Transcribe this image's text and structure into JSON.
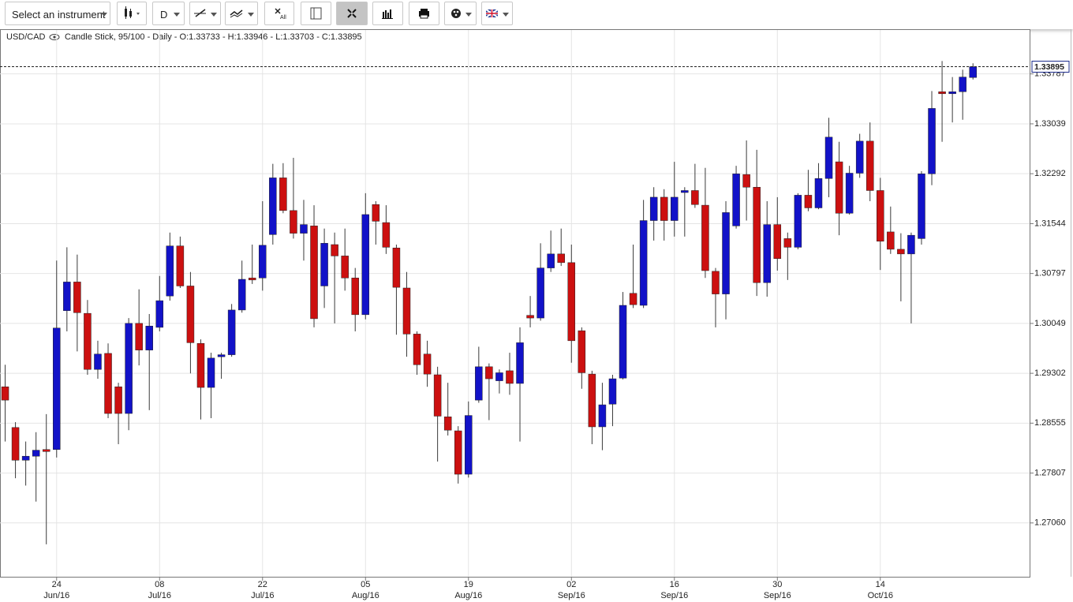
{
  "toolbar": {
    "instrument": "Select an instrument",
    "period": "D",
    "clear_label": "All"
  },
  "chart_data": {
    "type": "candlestick",
    "title": "USD/CAD",
    "subtitle": "Candle Stick, 95/100 - Daily - O:1.33733 - H:1.33946 - L:1.33703 - C:1.33895",
    "categories": [
      null,
      null,
      null,
      null,
      null,
      "24 Jun/16",
      null,
      null,
      null,
      null,
      null,
      null,
      null,
      null,
      null,
      "08 Jul/16",
      null,
      null,
      null,
      null,
      null,
      null,
      null,
      null,
      null,
      "22 Jul/16",
      null,
      null,
      null,
      null,
      null,
      null,
      null,
      null,
      null,
      "05 Aug/16",
      null,
      null,
      null,
      null,
      null,
      null,
      null,
      null,
      null,
      "19 Aug/16",
      null,
      null,
      null,
      null,
      null,
      null,
      null,
      null,
      null,
      "02 Sep/16",
      null,
      null,
      null,
      null,
      null,
      null,
      null,
      null,
      null,
      "16 Sep/16",
      null,
      null,
      null,
      null,
      null,
      null,
      null,
      null,
      null,
      "30 Sep/16",
      null,
      null,
      null,
      null,
      null,
      null,
      null,
      null,
      null,
      "14 Oct/16",
      null,
      null,
      null,
      null,
      null,
      null,
      null,
      null,
      null
    ],
    "open": [
      1.291,
      1.2849,
      1.28,
      1.2806,
      1.2816,
      1.2816,
      1.3024,
      1.3067,
      1.302,
      1.2936,
      1.296,
      1.291,
      1.287,
      1.3005,
      1.2965,
      1.2999,
      1.3046,
      1.3121,
      1.3061,
      1.2975,
      1.2909,
      1.2955,
      1.2958,
      1.3025,
      1.3073,
      1.3073,
      1.3138,
      1.3223,
      1.3174,
      1.314,
      1.3151,
      1.3061,
      1.3123,
      1.3106,
      1.3073,
      1.3018,
      1.3183,
      1.3156,
      1.3118,
      1.3058,
      1.2989,
      1.2959,
      1.2928,
      1.2865,
      1.2844,
      1.2779,
      1.289,
      1.294,
      1.2919,
      1.2934,
      1.2915,
      1.3017,
      1.3013,
      1.3088,
      1.3109,
      1.3096,
      1.2994,
      1.2929,
      1.285,
      1.2884,
      1.2923,
      1.305,
      1.3032,
      1.3159,
      1.3194,
      1.3159,
      1.3201,
      1.3204,
      1.3182,
      1.3083,
      1.3049,
      1.3151,
      1.3228,
      1.3209,
      1.3066,
      1.3153,
      1.3132,
      1.3119,
      1.3197,
      1.3178,
      1.3222,
      1.3247,
      1.317,
      1.323,
      1.3278,
      1.3204,
      1.3142,
      1.3116,
      1.3109,
      1.3132,
      1.3229,
      1.3352,
      1.3349,
      1.3352,
      1.33733
    ],
    "high": [
      1.2943,
      1.2857,
      1.2828,
      1.2842,
      1.2869,
      1.3099,
      1.3119,
      1.3108,
      1.304,
      1.2979,
      1.2975,
      1.2916,
      1.3013,
      1.3056,
      1.3019,
      1.3076,
      1.3141,
      1.3135,
      1.3082,
      1.2981,
      1.2961,
      1.2961,
      1.3034,
      1.3099,
      1.3123,
      1.3188,
      1.3244,
      1.3245,
      1.3253,
      1.319,
      1.3182,
      1.3147,
      1.3141,
      1.3147,
      1.3088,
      1.32,
      1.3188,
      1.3182,
      1.3123,
      1.3082,
      1.2993,
      1.2979,
      1.294,
      1.2916,
      1.2851,
      1.2888,
      1.297,
      1.2945,
      1.2936,
      1.2961,
      1.2999,
      1.3046,
      1.3125,
      1.3144,
      1.3147,
      1.3123,
      1.2999,
      1.2934,
      1.2916,
      1.2928,
      1.3052,
      1.3123,
      1.319,
      1.3209,
      1.3206,
      1.3247,
      1.3209,
      1.3244,
      1.3238,
      1.3088,
      1.3188,
      1.3241,
      1.3279,
      1.3265,
      1.3188,
      1.3194,
      1.3141,
      1.32,
      1.3235,
      1.3245,
      1.3313,
      1.3277,
      1.3241,
      1.3289,
      1.3306,
      1.3223,
      1.318,
      1.314,
      1.3141,
      1.3233,
      1.3353,
      1.3398,
      1.3374,
      1.3385,
      1.33946
    ],
    "low": [
      1.2828,
      1.2773,
      1.2762,
      1.2738,
      1.2674,
      1.2804,
      1.2993,
      1.2963,
      1.2928,
      1.2922,
      1.2863,
      1.2824,
      1.2845,
      1.2942,
      1.2875,
      1.2993,
      1.3039,
      1.3058,
      1.293,
      1.2861,
      1.2863,
      1.2922,
      1.2955,
      1.3021,
      1.3064,
      1.3054,
      1.3123,
      1.317,
      1.3132,
      1.3099,
      1.2999,
      1.3028,
      1.3005,
      1.3054,
      1.2993,
      1.3011,
      1.3123,
      1.3109,
      1.2988,
      1.2955,
      1.2928,
      1.291,
      1.2798,
      1.2837,
      1.2765,
      1.2774,
      1.2886,
      1.286,
      1.29,
      1.2898,
      1.2828,
      1.2999,
      1.3009,
      1.3082,
      1.3091,
      1.2946,
      1.2907,
      1.2824,
      1.2815,
      1.2851,
      1.2921,
      1.3028,
      1.3028,
      1.3129,
      1.3129,
      1.3135,
      1.3135,
      1.3178,
      1.3073,
      1.2999,
      1.3011,
      1.3147,
      1.3159,
      1.3046,
      1.3045,
      1.3084,
      1.307,
      1.3116,
      1.3173,
      1.3176,
      1.3194,
      1.3137,
      1.3168,
      1.3223,
      1.3188,
      1.3085,
      1.3109,
      1.3038,
      1.3005,
      1.3123,
      1.3212,
      1.3277,
      1.3306,
      1.331,
      1.33703
    ],
    "close": [
      1.289,
      1.28,
      1.2806,
      1.2815,
      1.2813,
      1.2998,
      1.3067,
      1.3021,
      1.2936,
      1.2959,
      1.287,
      1.287,
      1.3005,
      1.2965,
      1.3001,
      1.3039,
      1.3121,
      1.3061,
      1.2976,
      1.2909,
      1.2953,
      1.2958,
      1.3025,
      1.3071,
      1.307,
      1.3122,
      1.3223,
      1.3174,
      1.314,
      1.3153,
      1.3012,
      1.3125,
      1.3106,
      1.3073,
      1.3018,
      1.3168,
      1.3158,
      1.3119,
      1.3059,
      1.2989,
      1.2943,
      1.2929,
      1.2866,
      1.2845,
      1.2779,
      1.2867,
      1.294,
      1.2922,
      1.2931,
      1.2915,
      1.2976,
      1.3013,
      1.3088,
      1.3109,
      1.3096,
      1.2979,
      1.2931,
      1.285,
      1.2883,
      1.2922,
      1.3032,
      1.3033,
      1.3159,
      1.3194,
      1.3159,
      1.3194,
      1.3204,
      1.3183,
      1.3084,
      1.3049,
      1.3171,
      1.3229,
      1.3209,
      1.3066,
      1.3153,
      1.3102,
      1.3119,
      1.3197,
      1.3178,
      1.3222,
      1.3284,
      1.317,
      1.323,
      1.3278,
      1.3204,
      1.3128,
      1.3116,
      1.3109,
      1.3137,
      1.3229,
      1.3327,
      1.3349,
      1.3352,
      1.3374,
      1.33895
    ],
    "up_color": "#1212c8",
    "down_color": "#cc1010",
    "wick_color": "#3a3a3a",
    "ylim": [
      1.26254,
      1.34445
    ],
    "yticks": [
      {
        "value": 1.2706,
        "label": "1.27060"
      },
      1.27807,
      1.28555,
      1.29302,
      1.30049,
      1.30797,
      1.31544,
      1.32292,
      1.33039,
      1.33787
    ],
    "grid": true,
    "last_price_line": true
  }
}
